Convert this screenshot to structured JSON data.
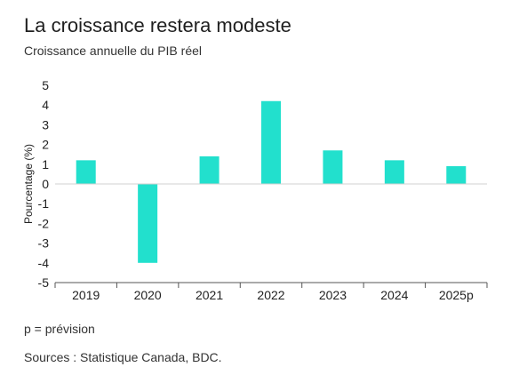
{
  "header": {
    "title": "La croissance restera modeste",
    "subtitle": "Croissance annuelle du PIB réel"
  },
  "footer": {
    "note": "p = prévision",
    "sources": "Sources : Statistique Canada, BDC."
  },
  "colors": {
    "bar": "#22e0cd",
    "grid": "#d0d0d0",
    "axis": "#555555",
    "text": "#222222"
  },
  "chart_data": {
    "type": "bar",
    "categories": [
      "2019",
      "2020",
      "2021",
      "2022",
      "2023",
      "2024",
      "2025p"
    ],
    "values": [
      1.2,
      -4.0,
      1.4,
      4.2,
      1.7,
      1.2,
      0.9
    ],
    "ylabel": "Pourcentage (%)",
    "ylim": [
      -5,
      5
    ],
    "yticks": [
      5,
      4,
      3,
      2,
      1,
      0,
      -1,
      -2,
      -3,
      -4,
      -5
    ],
    "grid": false,
    "legend": "none"
  }
}
